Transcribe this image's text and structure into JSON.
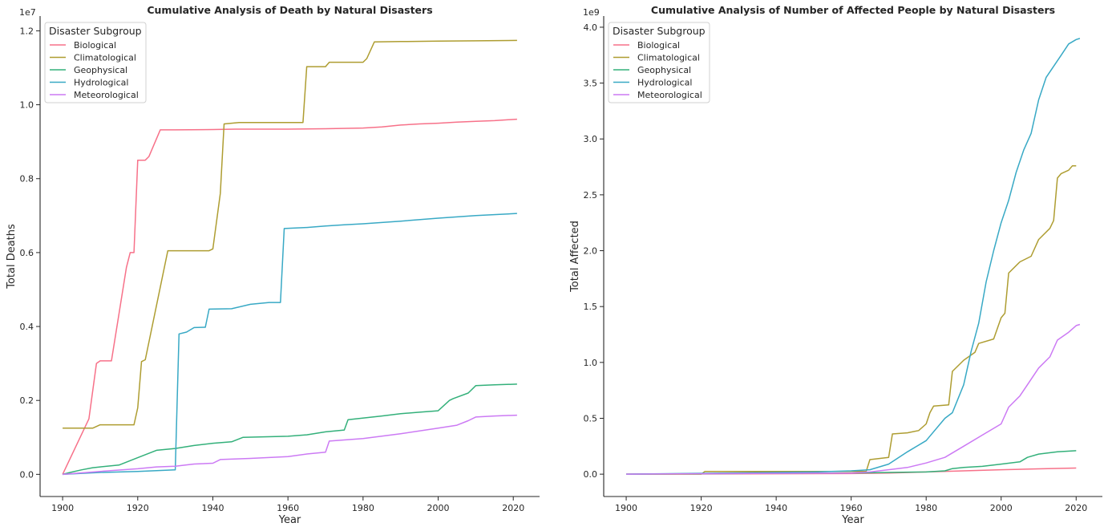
{
  "chart_data": [
    {
      "type": "line",
      "title": "Cumulative Analysis of Death by Natural Disasters",
      "xlabel": "Year",
      "ylabel": "Total Deaths",
      "offset_text": "1e7",
      "xlim": [
        1894,
        2027
      ],
      "ylim": [
        -0.06,
        1.24
      ],
      "xticks": [
        1900,
        1920,
        1940,
        1960,
        1980,
        2000,
        2020
      ],
      "yticks": [
        0.0,
        0.2,
        0.4,
        0.6,
        0.8,
        1.0,
        1.2
      ],
      "ytick_labels": [
        "0.0",
        "0.2",
        "0.4",
        "0.6",
        "0.8",
        "1.0",
        "1.2"
      ],
      "legend": {
        "title": "Disaster Subgroup",
        "placement": "upper-left"
      },
      "series": [
        {
          "name": "Biological",
          "color": "#f77189",
          "x": [
            1900,
            1907,
            1909,
            1910,
            1913,
            1917,
            1918,
            1919,
            1920,
            1922,
            1923,
            1926,
            1930,
            1940,
            1946,
            1960,
            1970,
            1980,
            1985,
            1990,
            1995,
            2000,
            2005,
            2010,
            2015,
            2021
          ],
          "y": [
            0.0,
            0.15,
            0.3,
            0.307,
            0.307,
            0.56,
            0.6,
            0.6,
            0.85,
            0.85,
            0.86,
            0.932,
            0.932,
            0.933,
            0.934,
            0.934,
            0.935,
            0.937,
            0.94,
            0.945,
            0.948,
            0.95,
            0.953,
            0.955,
            0.957,
            0.961
          ]
        },
        {
          "name": "Climatological",
          "color": "#ae9d31",
          "x": [
            1900,
            1908,
            1910,
            1919,
            1920,
            1921,
            1922,
            1928,
            1939,
            1940,
            1942,
            1943,
            1947,
            1964,
            1965,
            1970,
            1971,
            1980,
            1981,
            1983,
            1990,
            2000,
            2010,
            2021
          ],
          "y": [
            0.125,
            0.125,
            0.134,
            0.134,
            0.18,
            0.305,
            0.31,
            0.605,
            0.605,
            0.61,
            0.76,
            0.948,
            0.952,
            0.952,
            1.103,
            1.103,
            1.115,
            1.115,
            1.125,
            1.17,
            1.171,
            1.172,
            1.173,
            1.174
          ]
        },
        {
          "name": "Geophysical",
          "color": "#33b07a",
          "x": [
            1900,
            1902,
            1905,
            1908,
            1910,
            1915,
            1920,
            1925,
            1930,
            1935,
            1940,
            1945,
            1948,
            1960,
            1965,
            1970,
            1975,
            1976,
            1985,
            1990,
            1995,
            2000,
            2003,
            2004,
            2008,
            2010,
            2015,
            2021
          ],
          "y": [
            0.0,
            0.005,
            0.012,
            0.018,
            0.02,
            0.025,
            0.045,
            0.065,
            0.07,
            0.078,
            0.084,
            0.088,
            0.1,
            0.103,
            0.107,
            0.115,
            0.12,
            0.148,
            0.158,
            0.164,
            0.168,
            0.172,
            0.2,
            0.205,
            0.22,
            0.24,
            0.242,
            0.244
          ]
        },
        {
          "name": "Hydrological",
          "color": "#38a9c5",
          "x": [
            1900,
            1910,
            1920,
            1930,
            1931,
            1933,
            1935,
            1938,
            1939,
            1945,
            1950,
            1955,
            1958,
            1959,
            1965,
            1970,
            1975,
            1980,
            1990,
            2000,
            2010,
            2021
          ],
          "y": [
            0.0,
            0.005,
            0.008,
            0.012,
            0.38,
            0.385,
            0.397,
            0.398,
            0.447,
            0.448,
            0.46,
            0.465,
            0.465,
            0.665,
            0.668,
            0.672,
            0.675,
            0.678,
            0.685,
            0.693,
            0.7,
            0.706
          ]
        },
        {
          "name": "Meteorological",
          "color": "#cc7af4",
          "x": [
            1900,
            1910,
            1920,
            1925,
            1930,
            1935,
            1940,
            1942,
            1950,
            1960,
            1965,
            1970,
            1971,
            1980,
            1990,
            2000,
            2005,
            2008,
            2010,
            2015,
            2021
          ],
          "y": [
            0.0,
            0.008,
            0.015,
            0.02,
            0.022,
            0.028,
            0.03,
            0.04,
            0.043,
            0.048,
            0.055,
            0.06,
            0.09,
            0.097,
            0.11,
            0.125,
            0.133,
            0.145,
            0.155,
            0.158,
            0.16
          ]
        }
      ]
    },
    {
      "type": "line",
      "title": "Cumulative Analysis of Number of Affected People by Natural Disasters",
      "xlabel": "Year",
      "ylabel": "Total Affected",
      "offset_text": "1e9",
      "xlim": [
        1894,
        2027
      ],
      "ylim": [
        -0.2,
        4.1
      ],
      "xticks": [
        1900,
        1920,
        1940,
        1960,
        1980,
        2000,
        2020
      ],
      "yticks": [
        0.0,
        0.5,
        1.0,
        1.5,
        2.0,
        2.5,
        3.0,
        3.5,
        4.0
      ],
      "ytick_labels": [
        "0.0",
        "0.5",
        "1.0",
        "1.5",
        "2.0",
        "2.5",
        "3.0",
        "3.5",
        "4.0"
      ],
      "legend": {
        "title": "Disaster Subgroup",
        "placement": "upper-left"
      },
      "series": [
        {
          "name": "Biological",
          "color": "#f77189",
          "x": [
            1900,
            1960,
            1970,
            1980,
            1990,
            2000,
            2010,
            2020
          ],
          "y": [
            0.0,
            0.005,
            0.01,
            0.02,
            0.03,
            0.04,
            0.048,
            0.055
          ]
        },
        {
          "name": "Climatological",
          "color": "#ae9d31",
          "x": [
            1900,
            1920,
            1921,
            1964,
            1965,
            1970,
            1971,
            1975,
            1978,
            1980,
            1981,
            1982,
            1986,
            1987,
            1990,
            1993,
            1994,
            1998,
            2000,
            2001,
            2002,
            2005,
            2008,
            2010,
            2013,
            2014,
            2015,
            2016,
            2018,
            2019,
            2020
          ],
          "y": [
            0.0,
            0.0,
            0.025,
            0.025,
            0.13,
            0.15,
            0.36,
            0.37,
            0.39,
            0.45,
            0.55,
            0.61,
            0.62,
            0.92,
            1.02,
            1.09,
            1.17,
            1.21,
            1.4,
            1.44,
            1.8,
            1.9,
            1.95,
            2.1,
            2.2,
            2.27,
            2.65,
            2.69,
            2.72,
            2.76,
            2.76
          ]
        },
        {
          "name": "Geophysical",
          "color": "#33b07a",
          "x": [
            1900,
            1960,
            1970,
            1980,
            1985,
            1987,
            1990,
            1995,
            2000,
            2005,
            2007,
            2010,
            2015,
            2020
          ],
          "y": [
            0.0,
            0.01,
            0.015,
            0.02,
            0.03,
            0.05,
            0.06,
            0.07,
            0.09,
            0.11,
            0.15,
            0.18,
            0.2,
            0.21
          ]
        },
        {
          "name": "Hydrological",
          "color": "#38a9c5",
          "x": [
            1900,
            1950,
            1960,
            1965,
            1970,
            1975,
            1980,
            1985,
            1987,
            1990,
            1992,
            1994,
            1996,
            1998,
            2000,
            2002,
            2004,
            2006,
            2008,
            2010,
            2012,
            2014,
            2016,
            2018,
            2020,
            2021
          ],
          "y": [
            0.0,
            0.02,
            0.03,
            0.04,
            0.09,
            0.2,
            0.3,
            0.5,
            0.55,
            0.8,
            1.1,
            1.35,
            1.72,
            2.0,
            2.25,
            2.45,
            2.7,
            2.9,
            3.05,
            3.35,
            3.55,
            3.65,
            3.75,
            3.85,
            3.89,
            3.9
          ]
        },
        {
          "name": "Meteorological",
          "color": "#cc7af4",
          "x": [
            1900,
            1960,
            1965,
            1970,
            1975,
            1980,
            1985,
            1990,
            1995,
            2000,
            2002,
            2005,
            2007,
            2010,
            2013,
            2015,
            2018,
            2020,
            2021
          ],
          "y": [
            0.0,
            0.01,
            0.02,
            0.04,
            0.06,
            0.1,
            0.15,
            0.25,
            0.35,
            0.45,
            0.6,
            0.7,
            0.8,
            0.95,
            1.05,
            1.2,
            1.27,
            1.33,
            1.34
          ]
        }
      ]
    }
  ]
}
